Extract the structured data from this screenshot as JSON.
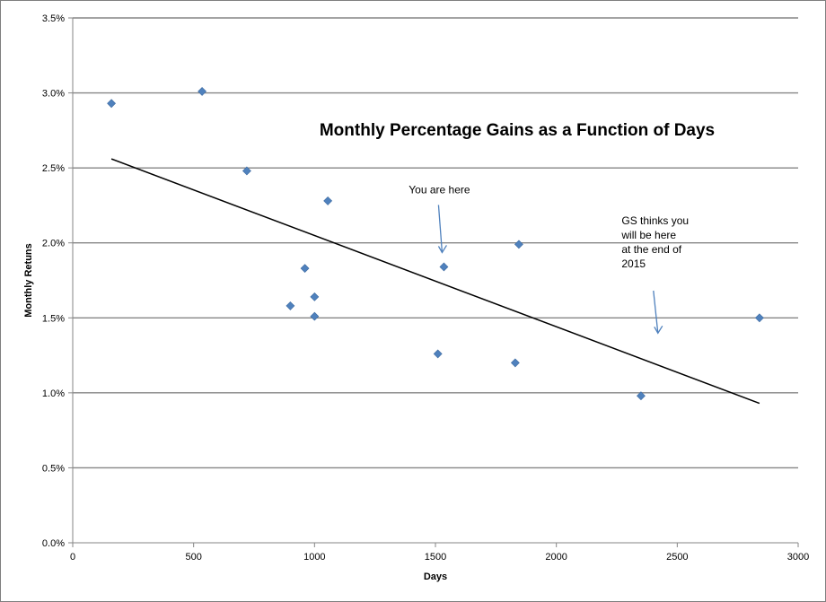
{
  "chart_data": {
    "type": "scatter",
    "title": "Monthly Percentage Gains as a Function of Days",
    "xlabel": "Days",
    "ylabel": "Monthly Retuns",
    "xlim": [
      0,
      3000
    ],
    "ylim": [
      0,
      3.5
    ],
    "x_ticks": [
      "0",
      "500",
      "1000",
      "1500",
      "2000",
      "2500",
      "3000"
    ],
    "y_ticks": [
      "0.0%",
      "0.5%",
      "1.0%",
      "1.5%",
      "2.0%",
      "2.5%",
      "3.0%",
      "3.5%"
    ],
    "grid": "horizontal",
    "legend": "none",
    "marker_color": "#4f81bd",
    "line_color": "#000000",
    "series": [
      {
        "x": [
          160,
          535,
          720,
          900,
          960,
          1000,
          1000,
          1055,
          1510,
          1535,
          1830,
          1845,
          2350,
          2840
        ],
        "y": [
          2.93,
          3.01,
          2.48,
          1.58,
          1.83,
          1.64,
          1.51,
          2.28,
          1.26,
          1.84,
          1.2,
          1.99,
          0.98,
          1.5
        ]
      }
    ],
    "trendline": {
      "x": [
        160,
        2840
      ],
      "y": [
        2.56,
        0.93
      ]
    },
    "annotations": [
      {
        "lines": [
          "You are here"
        ],
        "x": 1535,
        "y": 1.84
      },
      {
        "lines": [
          "GS thinks you",
          "will be here",
          "at the end of",
          "2015"
        ],
        "x": 2420,
        "y": 1.38
      }
    ]
  }
}
